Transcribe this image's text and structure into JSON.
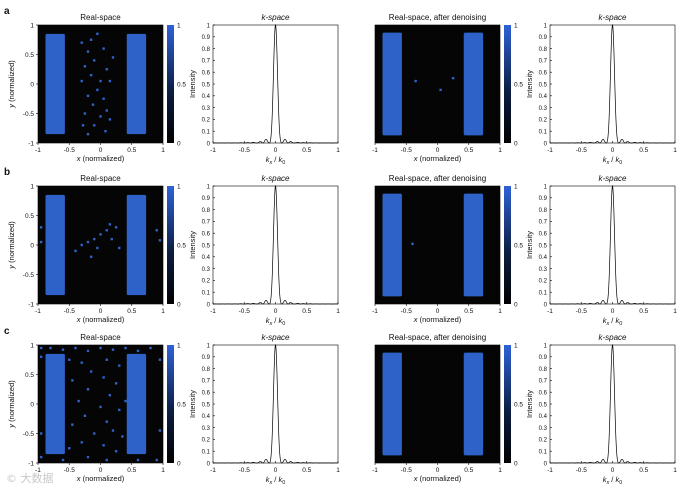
{
  "figure": {
    "colors": {
      "accent": "#2f62c8",
      "dark": "#050505",
      "line": "#000000"
    },
    "watermark": "© 大数据"
  },
  "chart_data": [
    {
      "type": "heatmap",
      "panel": "a",
      "title": "Real-space",
      "xlabel_italic": "x",
      "xlabel_rest": " (normalized)",
      "ylabel_italic": "y",
      "ylabel_rest": " (normalized)",
      "xlim": [
        -1,
        1
      ],
      "ylim": [
        -1,
        1
      ],
      "xticks": [
        "-1",
        "-0.5",
        "0",
        "0.5",
        "1"
      ],
      "yticks": [
        "-1",
        "-0.5",
        "0",
        "0.5",
        "1"
      ],
      "colorbar": {
        "range": [
          0,
          1
        ],
        "ticks": [
          "0",
          "0.5",
          "1"
        ]
      },
      "rectangles": [
        {
          "x": [
            -0.88,
            -0.57
          ],
          "y": [
            -0.85,
            0.85
          ],
          "value": 0.7
        },
        {
          "x": [
            0.42,
            0.73
          ],
          "y": [
            -0.85,
            0.85
          ],
          "value": 0.7
        }
      ],
      "noise_points": [
        [
          -0.3,
          0.7
        ],
        [
          -0.15,
          0.75
        ],
        [
          -0.05,
          0.85
        ],
        [
          -0.2,
          0.55
        ],
        [
          0.05,
          0.6
        ],
        [
          -0.1,
          0.4
        ],
        [
          -0.25,
          0.3
        ],
        [
          0.1,
          0.25
        ],
        [
          -0.15,
          0.15
        ],
        [
          0,
          0.05
        ],
        [
          -0.3,
          0.05
        ],
        [
          0.15,
          0.05
        ],
        [
          -0.05,
          -0.1
        ],
        [
          -0.2,
          -0.2
        ],
        [
          0.05,
          -0.25
        ],
        [
          -0.12,
          -0.35
        ],
        [
          0.1,
          -0.45
        ],
        [
          -0.25,
          -0.5
        ],
        [
          0.0,
          -0.55
        ],
        [
          -0.1,
          -0.7
        ],
        [
          0.08,
          -0.8
        ],
        [
          -0.2,
          -0.85
        ],
        [
          0.15,
          -0.6
        ],
        [
          -0.28,
          -0.7
        ],
        [
          0.2,
          0.45
        ]
      ]
    },
    {
      "type": "line",
      "panel": "a",
      "title": "k-space",
      "ylabel": "Intensity",
      "xlabel": "kx / k0",
      "xlim": [
        -1,
        1
      ],
      "ylim": [
        0,
        1
      ],
      "xticks": [
        "-1",
        "-0.5",
        "0",
        "0.5",
        "1"
      ],
      "yticks": [
        "0",
        "0.1",
        "0.2",
        "0.3",
        "0.4",
        "0.5",
        "0.6",
        "0.7",
        "0.8",
        "0.9",
        "1"
      ],
      "model": {
        "sinc_width": 0.032,
        "cos_period": 0.2,
        "mod": 0.66,
        "floor": 0.0
      }
    },
    {
      "type": "heatmap",
      "panel": "a",
      "title": "Real-space, after denoising",
      "xlabel_italic": "x",
      "xlabel_rest": " (normalized)",
      "xlim": [
        -1,
        1
      ],
      "ylim": [
        -1,
        1
      ],
      "xticks": [
        "-1",
        "-0.5",
        "0",
        "0.5",
        "1"
      ],
      "yticks": [],
      "colorbar": {
        "range": [
          0,
          1
        ],
        "ticks": [
          "0",
          "0.5",
          "1"
        ]
      },
      "rectangles": [
        {
          "x": [
            -0.88,
            -0.57
          ],
          "y": [
            -0.87,
            0.87
          ],
          "value": 0.7
        },
        {
          "x": [
            0.42,
            0.73
          ],
          "y": [
            -0.87,
            0.87
          ],
          "value": 0.7
        }
      ],
      "noise_points": [
        [
          -0.35,
          0.05
        ],
        [
          0.05,
          -0.1
        ],
        [
          0.25,
          0.1
        ]
      ]
    },
    {
      "type": "line",
      "panel": "a",
      "title": "k-space",
      "ylabel": "Intensity",
      "xlabel": "kx / k0",
      "xlim": [
        -1,
        1
      ],
      "ylim": [
        0,
        1
      ],
      "xticks": [
        "-1",
        "-0.5",
        "0",
        "0.5",
        "1"
      ],
      "yticks": [
        "0",
        "0.1",
        "0.2",
        "0.3",
        "0.4",
        "0.5",
        "0.6",
        "0.7",
        "0.8",
        "0.9",
        "1"
      ],
      "model": {
        "sinc_width": 0.032,
        "cos_period": 0.2,
        "mod": 0.66,
        "floor": 0.0
      }
    },
    {
      "type": "heatmap",
      "panel": "b",
      "title": "Real-space",
      "xlabel_italic": "x",
      "xlabel_rest": " (normalized)",
      "ylabel_italic": "y",
      "ylabel_rest": " (normalized)",
      "xlim": [
        -1,
        1
      ],
      "ylim": [
        -1,
        1
      ],
      "xticks": [
        "-1",
        "-0.5",
        "0",
        "0.5",
        "1"
      ],
      "yticks": [
        "-1",
        "-0.5",
        "0",
        "0.5",
        "1"
      ],
      "colorbar": {
        "range": [
          0,
          1
        ],
        "ticks": [
          "0",
          "0.5",
          "1"
        ]
      },
      "rectangles": [
        {
          "x": [
            -0.88,
            -0.57
          ],
          "y": [
            -0.85,
            0.85
          ],
          "value": 0.7
        },
        {
          "x": [
            0.42,
            0.73
          ],
          "y": [
            -0.85,
            0.85
          ],
          "value": 0.7
        }
      ],
      "noise_points": [
        [
          -0.95,
          0.3
        ],
        [
          -0.95,
          0.05
        ],
        [
          0.9,
          0.25
        ],
        [
          0.95,
          0.08
        ],
        [
          -0.3,
          0.0
        ],
        [
          -0.2,
          0.05
        ],
        [
          -0.1,
          0.1
        ],
        [
          0.0,
          0.18
        ],
        [
          0.1,
          0.25
        ],
        [
          0.18,
          0.1
        ],
        [
          -0.05,
          -0.05
        ],
        [
          0.25,
          0.3
        ],
        [
          -0.4,
          -0.1
        ],
        [
          0.3,
          -0.05
        ],
        [
          0.15,
          0.35
        ],
        [
          -0.15,
          -0.2
        ]
      ]
    },
    {
      "type": "line",
      "panel": "b",
      "title": "k-space",
      "ylabel": "Intensity",
      "xlabel": "kx / k0",
      "xlim": [
        -1,
        1
      ],
      "ylim": [
        0,
        1
      ],
      "xticks": [
        "-1",
        "-0.5",
        "0",
        "0.5",
        "1"
      ],
      "yticks": [
        "0",
        "0.1",
        "0.2",
        "0.3",
        "0.4",
        "0.5",
        "0.6",
        "0.7",
        "0.8",
        "0.9",
        "1"
      ],
      "model": {
        "sinc_width": 0.032,
        "cos_period": 0.2,
        "mod": 0.66,
        "floor": 0.0
      }
    },
    {
      "type": "heatmap",
      "panel": "b",
      "title": "Real-space, after denoising",
      "xlabel_italic": "x",
      "xlabel_rest": " (normalized)",
      "xlim": [
        -1,
        1
      ],
      "ylim": [
        -1,
        1
      ],
      "xticks": [
        "-1",
        "-0.5",
        "0",
        "0.5",
        "1"
      ],
      "yticks": [],
      "colorbar": {
        "range": [
          0,
          1
        ],
        "ticks": [
          "0",
          "0.5",
          "1"
        ]
      },
      "rectangles": [
        {
          "x": [
            -0.88,
            -0.57
          ],
          "y": [
            -0.87,
            0.87
          ],
          "value": 0.7
        },
        {
          "x": [
            0.42,
            0.73
          ],
          "y": [
            -0.87,
            0.87
          ],
          "value": 0.7
        }
      ],
      "noise_points": [
        [
          -0.4,
          0.02
        ]
      ]
    },
    {
      "type": "line",
      "panel": "b",
      "title": "k-space",
      "ylabel": "Intensity",
      "xlabel": "kx / k0",
      "xlim": [
        -1,
        1
      ],
      "ylim": [
        0,
        1
      ],
      "xticks": [
        "-1",
        "-0.5",
        "0",
        "0.5",
        "1"
      ],
      "yticks": [
        "0",
        "0.1",
        "0.2",
        "0.3",
        "0.4",
        "0.5",
        "0.6",
        "0.7",
        "0.8",
        "0.9",
        "1"
      ],
      "model": {
        "sinc_width": 0.032,
        "cos_period": 0.2,
        "mod": 0.66,
        "floor": 0.0
      }
    },
    {
      "type": "heatmap",
      "panel": "c",
      "title": "Real-space",
      "xlabel_italic": "x",
      "xlabel_rest": " (normalized)",
      "ylabel_italic": "y",
      "ylabel_rest": " (normalized)",
      "xlim": [
        -1,
        1
      ],
      "ylim": [
        -1,
        1
      ],
      "xticks": [
        "-1",
        "-0.5",
        "0",
        "0.5",
        "1"
      ],
      "yticks": [
        "-1",
        "-0.5",
        "0",
        "0.5",
        "1"
      ],
      "colorbar": {
        "range": [
          0,
          1
        ],
        "ticks": [
          "0",
          "0.5",
          "1"
        ]
      },
      "rectangles": [
        {
          "x": [
            -0.88,
            -0.57
          ],
          "y": [
            -0.85,
            0.85
          ],
          "value": 0.7
        },
        {
          "x": [
            0.42,
            0.73
          ],
          "y": [
            -0.85,
            0.85
          ],
          "value": 0.7
        }
      ],
      "noise_points": [
        [
          -0.95,
          0.95
        ],
        [
          -0.8,
          0.95
        ],
        [
          -0.6,
          0.92
        ],
        [
          -0.4,
          0.95
        ],
        [
          -0.2,
          0.9
        ],
        [
          0.0,
          0.95
        ],
        [
          0.2,
          0.92
        ],
        [
          0.4,
          0.95
        ],
        [
          0.6,
          0.9
        ],
        [
          0.8,
          0.95
        ],
        [
          -0.95,
          0.8
        ],
        [
          0.95,
          0.75
        ],
        [
          -0.5,
          0.75
        ],
        [
          -0.3,
          0.7
        ],
        [
          0.1,
          0.75
        ],
        [
          0.3,
          0.65
        ],
        [
          -0.15,
          0.55
        ],
        [
          0.05,
          0.45
        ],
        [
          -0.45,
          0.4
        ],
        [
          0.25,
          0.35
        ],
        [
          -0.2,
          0.25
        ],
        [
          0.15,
          0.15
        ],
        [
          -0.35,
          0.05
        ],
        [
          0.0,
          -0.05
        ],
        [
          0.3,
          -0.1
        ],
        [
          -0.25,
          -0.2
        ],
        [
          0.1,
          -0.3
        ],
        [
          -0.45,
          -0.35
        ],
        [
          0.2,
          -0.45
        ],
        [
          -0.1,
          -0.5
        ],
        [
          0.35,
          -0.55
        ],
        [
          -0.3,
          -0.65
        ],
        [
          0.05,
          -0.7
        ],
        [
          -0.5,
          -0.75
        ],
        [
          0.25,
          -0.8
        ],
        [
          -0.2,
          -0.9
        ],
        [
          0.1,
          -0.95
        ],
        [
          -0.95,
          -0.5
        ],
        [
          0.95,
          -0.45
        ],
        [
          -0.95,
          -0.9
        ],
        [
          0.9,
          -0.95
        ],
        [
          -0.6,
          -0.95
        ],
        [
          0.6,
          -0.95
        ],
        [
          0.4,
          0.05
        ]
      ]
    },
    {
      "type": "line",
      "panel": "c",
      "title": "k-space",
      "ylabel": "Intensity",
      "xlabel": "kx / k0",
      "xlim": [
        -1,
        1
      ],
      "ylim": [
        0,
        1
      ],
      "xticks": [
        "-1",
        "-0.5",
        "0",
        "0.5",
        "1"
      ],
      "yticks": [
        "0",
        "0.1",
        "0.2",
        "0.3",
        "0.4",
        "0.5",
        "0.6",
        "0.7",
        "0.8",
        "0.9",
        "1"
      ],
      "model": {
        "sinc_width": 0.032,
        "cos_period": 0.2,
        "mod": 0.66,
        "floor": 0.0
      }
    },
    {
      "type": "heatmap",
      "panel": "c",
      "title": "Real-space, after denoising",
      "xlabel_italic": "x",
      "xlabel_rest": " (normalized)",
      "xlim": [
        -1,
        1
      ],
      "ylim": [
        -1,
        1
      ],
      "xticks": [
        "-1",
        "-0.5",
        "0",
        "0.5",
        "1"
      ],
      "yticks": [],
      "colorbar": {
        "range": [
          0,
          1
        ],
        "ticks": [
          "0",
          "0.5",
          "1"
        ]
      },
      "rectangles": [
        {
          "x": [
            -0.88,
            -0.57
          ],
          "y": [
            -0.87,
            0.87
          ],
          "value": 0.7
        },
        {
          "x": [
            0.42,
            0.73
          ],
          "y": [
            -0.87,
            0.87
          ],
          "value": 0.7
        }
      ],
      "noise_points": []
    },
    {
      "type": "line",
      "panel": "c",
      "title": "k-space",
      "ylabel": "Intensity",
      "xlabel": "kx / k0",
      "xlim": [
        -1,
        1
      ],
      "ylim": [
        0,
        1
      ],
      "xticks": [
        "-1",
        "-0.5",
        "0",
        "0.5",
        "1"
      ],
      "yticks": [
        "0",
        "0.1",
        "0.2",
        "0.3",
        "0.4",
        "0.5",
        "0.6",
        "0.7",
        "0.8",
        "0.9",
        "1"
      ],
      "model": {
        "sinc_width": 0.032,
        "cos_period": 0.2,
        "mod": 0.66,
        "floor": 0.0
      }
    }
  ]
}
